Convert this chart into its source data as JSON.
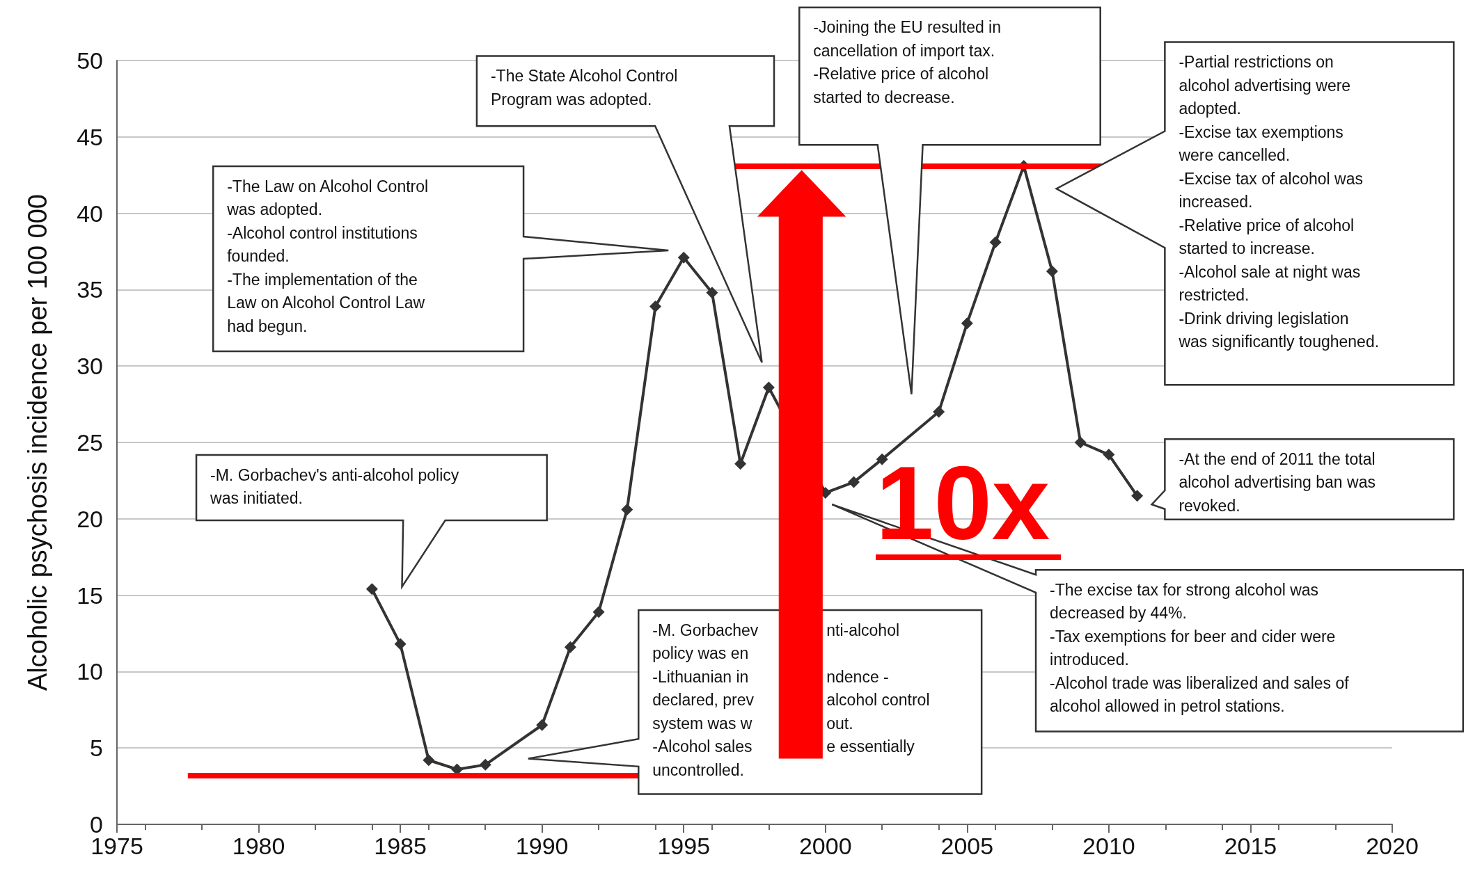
{
  "chart_data": {
    "type": "line",
    "ylabel": "Alcoholic psychosis incidence per 100 000",
    "x": [
      1984,
      1985,
      1986,
      1987,
      1988,
      1990,
      1991,
      1992,
      1993,
      1994,
      1995,
      1996,
      1997,
      1998,
      1999,
      2000,
      2001,
      2002,
      2003,
      2004,
      2005,
      2006,
      2007,
      2008,
      2009,
      2010,
      2011
    ],
    "series": [
      {
        "color": "#333333",
        "values": [
          15.4,
          11.8,
          4.2,
          3.6,
          3.9,
          6.5,
          11.6,
          13.9,
          20.6,
          33.9,
          37.1,
          34.8,
          23.6,
          28.6,
          null,
          21.7,
          22.4,
          23.9,
          null,
          27,
          32.8,
          38.1,
          43.1,
          36.2,
          25,
          24.2,
          21.5
        ]
      }
    ],
    "xlim": [
      1975,
      2020
    ],
    "xticks": [
      1975,
      1980,
      1985,
      1990,
      1995,
      2000,
      2005,
      2010,
      2015,
      2020
    ],
    "ylim": [
      0,
      50
    ],
    "yticks": [
      0,
      5,
      10,
      15,
      20,
      25,
      30,
      35,
      40,
      45,
      50
    ],
    "grid": "y",
    "marker": "diamond",
    "line_style": "solid",
    "ref_lines": [
      {
        "axis": "y",
        "value": 43.1,
        "color": "#ff0000"
      },
      {
        "axis": "y",
        "value": 3.2,
        "color": "#ff0000"
      }
    ],
    "annotations": [
      "-M. Gorbachev's anti-alcohol policy\nwas initiated.",
      "-The Law on Alcohol Control\nwas adopted.\n-Alcohol control institutions\nfounded.\n-The implementation of the\nLaw on Alcohol Control Law\nhad begun.",
      "-The State Alcohol Control\nProgram was adopted.",
      "-Joining the EU resulted in\ncancellation of import tax.\n-Relative price of alcohol\nstarted to decrease.",
      "-Partial restrictions on\nalcohol advertising were\nadopted.\n-Excise tax exemptions\nwere cancelled.\n-Excise tax of alcohol was\nincreased.\n-Relative price of alcohol\nstarted to increase.\n-Alcohol sale at night was\nrestricted.\n-Drink driving legislation\nwas significantly toughened.",
      "-At the end of 2011 the total\nalcohol advertising ban was\nrevoked.",
      "-The excise tax for strong alcohol was\ndecreased by 44%.\n-Tax exemptions for beer and cider were\nintroduced.\n-Alcohol trade was liberalized and sales of\nalcohol allowed in petrol stations.",
      "-M. Gorbachev\tnti-alcohol\npolicy was en\t\n-Lithuanian in\tndence -\ndeclared, prev\talcohol control\nsystem was w\tout.\n-Alcohol sales\te essentially\nuncontrolled.\t",
      "10x"
    ]
  }
}
